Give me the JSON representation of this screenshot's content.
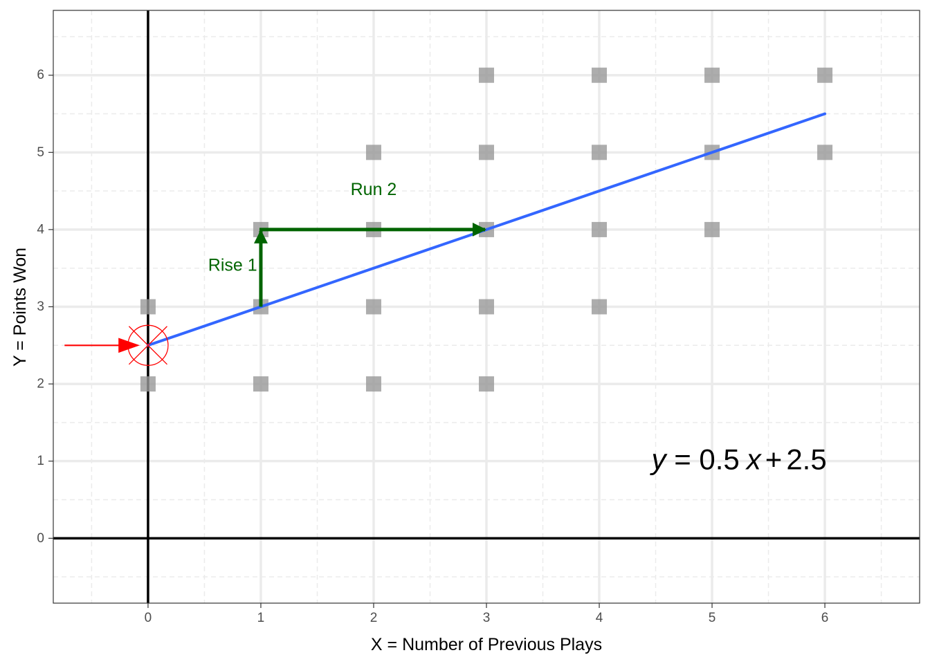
{
  "chart_data": {
    "type": "scatter",
    "title": "",
    "xlabel": "X = Number of Previous Plays",
    "ylabel": "Y = Points Won",
    "xlim": [
      -0.84,
      6.84
    ],
    "ylim": [
      -0.84,
      6.84
    ],
    "x_ticks": [
      0,
      1,
      2,
      3,
      4,
      5,
      6
    ],
    "y_ticks": [
      0,
      1,
      2,
      3,
      4,
      5,
      6
    ],
    "x_tick_labels": [
      "0",
      "1",
      "2",
      "3",
      "4",
      "5",
      "6"
    ],
    "y_tick_labels": [
      "0",
      "1",
      "2",
      "3",
      "4",
      "5",
      "6"
    ],
    "grid": true,
    "points": [
      {
        "x": 0,
        "y": 2
      },
      {
        "x": 0,
        "y": 3
      },
      {
        "x": 1,
        "y": 2
      },
      {
        "x": 1,
        "y": 3
      },
      {
        "x": 1,
        "y": 4
      },
      {
        "x": 2,
        "y": 2
      },
      {
        "x": 2,
        "y": 3
      },
      {
        "x": 2,
        "y": 4
      },
      {
        "x": 2,
        "y": 5
      },
      {
        "x": 3,
        "y": 2
      },
      {
        "x": 3,
        "y": 3
      },
      {
        "x": 3,
        "y": 4
      },
      {
        "x": 3,
        "y": 5
      },
      {
        "x": 3,
        "y": 6
      },
      {
        "x": 4,
        "y": 3
      },
      {
        "x": 4,
        "y": 4
      },
      {
        "x": 4,
        "y": 5
      },
      {
        "x": 4,
        "y": 6
      },
      {
        "x": 5,
        "y": 4
      },
      {
        "x": 5,
        "y": 5
      },
      {
        "x": 5,
        "y": 6
      },
      {
        "x": 6,
        "y": 5
      },
      {
        "x": 6,
        "y": 6
      }
    ],
    "regression_line": {
      "slope": 0.5,
      "intercept": 2.5,
      "x_range": [
        0,
        6
      ]
    },
    "intercept_marker": {
      "x": 0,
      "y": 2.5
    },
    "intercept_arrow": {
      "x_start": -0.74,
      "x_end": -0.08,
      "y": 2.5
    },
    "rise_arrow": {
      "x": 1,
      "y_start": 3,
      "y_end": 4,
      "label": "Rise 1",
      "label_x": 0.75,
      "label_y": 3.5
    },
    "run_arrow": {
      "y": 4,
      "x_start": 1,
      "x_end": 3,
      "label": "Run 2",
      "label_x": 2,
      "label_y": 4.5
    },
    "equation": {
      "x": 4.5,
      "y": 1,
      "lhs_var": "y",
      "equals": " = ",
      "coefficient": "0.5",
      "rhs_var": "x",
      "plus": "+",
      "constant": "2.5"
    },
    "colors": {
      "point": "#999999",
      "line": "#3366FF",
      "arrow": "#006400",
      "marker": "#FF0000",
      "axis_line": "#000000",
      "grid": "#EBEBEB"
    }
  }
}
